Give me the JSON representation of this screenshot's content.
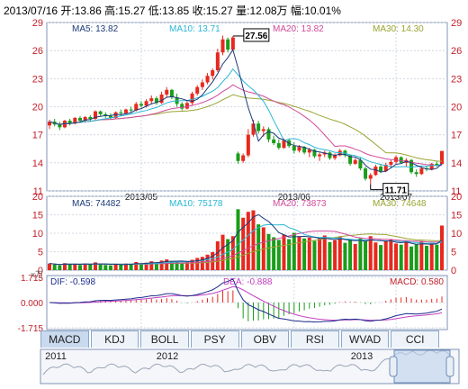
{
  "header": {
    "text": "2013/07/16 开:13.86 高:15.27 低:13.85 收:15.27 量:12.08万 幅:10.01%"
  },
  "colors": {
    "up": "#e8281e",
    "down": "#1a9d1a",
    "ma5": "#1c3a7a",
    "ma10": "#2ab7d6",
    "ma20": "#d04a9a",
    "ma30": "#9aa430",
    "dif": "#1c2d8c",
    "dea": "#c040c0",
    "grid": "#c8d0dc",
    "frame": "#7f93b5",
    "axis_text": "#c0202a"
  },
  "price_panel": {
    "ma_labels": [
      {
        "text": "MA5: 13.82",
        "color": "#1c3a7a"
      },
      {
        "text": "MA10: 13.71",
        "color": "#2ab7d6"
      },
      {
        "text": "MA20: 13.82",
        "color": "#d04a9a"
      },
      {
        "text": "MA30: 14.30",
        "color": "#9aa430"
      }
    ],
    "annot_high": "27.56",
    "annot_low": "11.71",
    "date_labels": [
      "2013/05",
      "2013/06",
      "2013/07"
    ]
  },
  "volume_panel": {
    "ma_labels": [
      {
        "text": "MA5: 74482",
        "color": "#1c3a7a"
      },
      {
        "text": "MA10: 75178",
        "color": "#2ab7d6"
      },
      {
        "text": "MA20: 73873",
        "color": "#d04a9a"
      },
      {
        "text": "MA30: 74648",
        "color": "#9aa430"
      }
    ],
    "unit": "x万"
  },
  "macd_panel": {
    "dif_label": "DIF: -0.598",
    "dea_label": "DEA: -0.888",
    "macd_label": "MACD: 0.580"
  },
  "tabs": [
    "MACD",
    "KDJ",
    "BOLL",
    "PSY",
    "OBV",
    "RSI",
    "WVAD",
    "CCI"
  ],
  "overview": {
    "years": [
      "2011",
      "2012",
      "2013"
    ]
  },
  "chart_data": [
    {
      "type": "candlestick",
      "ylim": [
        11,
        29
      ],
      "y_ticks": [
        11,
        14,
        17,
        20,
        23,
        26,
        29
      ],
      "x_labels": [
        "2013/05",
        "2013/06",
        "2013/07"
      ],
      "candles": [
        [
          18.0,
          18.6,
          17.6,
          18.4
        ],
        [
          18.4,
          18.7,
          17.9,
          18.1
        ],
        [
          18.1,
          18.4,
          17.5,
          17.8
        ],
        [
          17.8,
          18.6,
          17.7,
          18.5
        ],
        [
          18.5,
          18.7,
          18.0,
          18.2
        ],
        [
          18.2,
          18.9,
          18.1,
          18.8
        ],
        [
          18.8,
          19.0,
          18.4,
          18.5
        ],
        [
          18.5,
          19.0,
          18.3,
          18.9
        ],
        [
          18.9,
          19.1,
          18.5,
          18.7
        ],
        [
          18.7,
          19.6,
          18.6,
          19.5
        ],
        [
          19.5,
          19.6,
          19.0,
          19.2
        ],
        [
          19.2,
          19.4,
          18.8,
          19.0
        ],
        [
          19.0,
          19.3,
          18.6,
          18.8
        ],
        [
          18.8,
          19.5,
          18.7,
          19.4
        ],
        [
          19.4,
          19.7,
          19.0,
          19.3
        ],
        [
          19.3,
          19.8,
          19.2,
          19.7
        ],
        [
          19.7,
          20.0,
          19.4,
          19.6
        ],
        [
          19.6,
          20.5,
          19.5,
          20.3
        ],
        [
          20.3,
          20.6,
          19.9,
          20.1
        ],
        [
          20.1,
          20.8,
          19.9,
          20.6
        ],
        [
          20.6,
          21.2,
          20.3,
          20.9
        ],
        [
          20.9,
          21.1,
          20.2,
          20.4
        ],
        [
          20.4,
          21.6,
          20.3,
          21.3
        ],
        [
          21.3,
          22.1,
          21.0,
          21.8
        ],
        [
          21.8,
          21.9,
          20.8,
          21.0
        ],
        [
          21.0,
          21.4,
          20.0,
          20.3
        ],
        [
          20.3,
          20.5,
          19.6,
          19.8
        ],
        [
          19.8,
          20.6,
          19.7,
          20.4
        ],
        [
          20.4,
          21.6,
          20.2,
          21.4
        ],
        [
          21.4,
          22.3,
          21.2,
          22.1
        ],
        [
          22.1,
          22.9,
          21.8,
          22.6
        ],
        [
          22.6,
          23.6,
          22.4,
          23.3
        ],
        [
          23.3,
          24.1,
          22.9,
          23.9
        ],
        [
          23.9,
          26.2,
          23.7,
          25.8
        ],
        [
          25.8,
          27.6,
          25.5,
          27.2
        ],
        [
          27.2,
          27.4,
          25.8,
          26.1
        ],
        [
          26.1,
          27.56,
          25.9,
          27.4
        ],
        [
          15.0,
          15.2,
          13.9,
          14.2
        ],
        [
          14.2,
          15.0,
          14.0,
          14.8
        ],
        [
          14.8,
          17.6,
          14.6,
          17.0
        ],
        [
          17.0,
          18.6,
          16.8,
          18.2
        ],
        [
          18.2,
          18.5,
          17.1,
          17.4
        ],
        [
          17.4,
          17.9,
          16.8,
          17.6
        ],
        [
          17.6,
          17.8,
          16.2,
          16.5
        ],
        [
          16.5,
          16.9,
          15.9,
          16.1
        ],
        [
          16.1,
          16.5,
          15.4,
          15.6
        ],
        [
          15.6,
          16.6,
          15.5,
          16.4
        ],
        [
          16.4,
          16.6,
          15.6,
          15.8
        ],
        [
          15.8,
          16.2,
          15.0,
          15.3
        ],
        [
          15.3,
          15.9,
          15.1,
          15.7
        ],
        [
          15.7,
          15.8,
          14.9,
          15.1
        ],
        [
          15.1,
          15.6,
          14.6,
          15.4
        ],
        [
          15.4,
          15.5,
          14.5,
          14.7
        ],
        [
          14.7,
          15.1,
          14.2,
          14.9
        ],
        [
          14.9,
          15.3,
          14.6,
          15.1
        ],
        [
          15.1,
          15.2,
          14.3,
          14.5
        ],
        [
          14.5,
          15.0,
          14.3,
          14.8
        ],
        [
          14.8,
          15.5,
          14.7,
          15.3
        ],
        [
          15.3,
          15.4,
          14.6,
          14.8
        ],
        [
          14.8,
          14.9,
          13.7,
          13.9
        ],
        [
          13.9,
          14.5,
          13.8,
          14.3
        ],
        [
          14.3,
          14.6,
          13.2,
          13.4
        ],
        [
          13.4,
          13.6,
          12.1,
          12.3
        ],
        [
          12.3,
          12.9,
          11.71,
          12.7
        ],
        [
          12.7,
          13.8,
          12.6,
          13.6
        ],
        [
          13.6,
          13.9,
          12.9,
          13.1
        ],
        [
          13.1,
          14.0,
          13.0,
          13.8
        ],
        [
          13.8,
          14.3,
          13.5,
          14.1
        ],
        [
          14.1,
          14.8,
          13.9,
          14.6
        ],
        [
          14.6,
          14.7,
          13.9,
          14.0
        ],
        [
          14.0,
          14.5,
          13.6,
          14.3
        ],
        [
          14.3,
          14.4,
          12.8,
          13.0
        ],
        [
          13.0,
          13.3,
          12.5,
          12.8
        ],
        [
          12.8,
          13.6,
          12.7,
          13.4
        ],
        [
          13.4,
          13.7,
          13.1,
          13.3
        ],
        [
          13.3,
          14.0,
          13.2,
          13.9
        ],
        [
          13.9,
          14.2,
          13.6,
          13.7
        ],
        [
          13.86,
          15.27,
          13.85,
          15.27
        ]
      ]
    },
    {
      "type": "bar",
      "name": "volume",
      "ylim": [
        0,
        20
      ],
      "y_ticks": [
        0,
        5,
        10,
        15,
        20
      ],
      "unit": "万",
      "values": [
        1.8,
        1.5,
        1.3,
        1.9,
        1.6,
        1.7,
        1.4,
        1.8,
        1.5,
        2.1,
        1.6,
        1.4,
        1.3,
        1.7,
        1.5,
        1.8,
        1.6,
        2.2,
        1.7,
        2.0,
        2.4,
        1.9,
        2.6,
        2.9,
        2.3,
        2.5,
        2.0,
        2.2,
        2.8,
        3.3,
        3.6,
        4.2,
        4.9,
        7.8,
        9.6,
        8.4,
        9.2,
        16.5,
        14.2,
        15.8,
        16.2,
        12.4,
        11.6,
        9.8,
        8.9,
        8.2,
        9.6,
        8.4,
        10.1,
        9.2,
        8.6,
        8.8,
        7.9,
        8.5,
        9.4,
        7.6,
        8.1,
        9.0,
        7.4,
        8.3,
        7.1,
        8.6,
        7.8,
        9.2,
        7.5,
        6.8,
        7.9,
        8.4,
        7.2,
        6.9,
        7.6,
        6.4,
        7.0,
        7.8,
        6.6,
        7.3,
        6.9,
        12.08
      ]
    },
    {
      "type": "macd",
      "ylim": [
        -1.715,
        1.715
      ],
      "y_ticks": [
        -1.715,
        0.0,
        1.715
      ],
      "dif_last": -0.598,
      "dea_last": -0.888,
      "macd_last": 0.58
    }
  ]
}
